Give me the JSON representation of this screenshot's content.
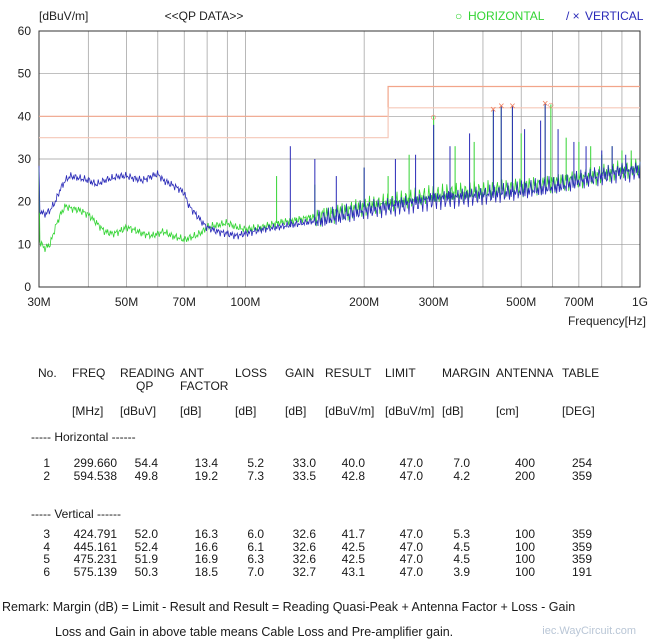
{
  "chart_data": {
    "type": "line",
    "header_unit": "[dBuV/m]",
    "title": "<<QP DATA>>",
    "xlabel": "Frequency[Hz]",
    "ylim": [
      0,
      60
    ],
    "yticks": [
      0,
      10,
      20,
      30,
      40,
      50,
      60
    ],
    "xscale": "log",
    "xlim": [
      30,
      1000
    ],
    "xticks": [
      {
        "v": 30,
        "label": "30M"
      },
      {
        "v": 50,
        "label": "50M"
      },
      {
        "v": 70,
        "label": "70M"
      },
      {
        "v": 100,
        "label": "100M"
      },
      {
        "v": 200,
        "label": "200M"
      },
      {
        "v": 300,
        "label": "300M"
      },
      {
        "v": 500,
        "label": "500M"
      },
      {
        "v": 700,
        "label": "700M"
      },
      {
        "v": 1000,
        "label": "1G"
      }
    ],
    "xgrid": [
      30,
      40,
      50,
      60,
      70,
      80,
      90,
      100,
      200,
      300,
      400,
      500,
      600,
      700,
      800,
      900,
      1000
    ],
    "legend": [
      {
        "marker": "○",
        "name": "HORIZONTAL",
        "color": "#33d433"
      },
      {
        "marker": "/ ×",
        "name": "VERTICAL",
        "color": "#2a2ab8"
      }
    ],
    "limit_lines": [
      {
        "color": "#f2a58a",
        "points": [
          [
            30,
            40
          ],
          [
            230,
            40
          ],
          [
            230,
            47
          ],
          [
            1000,
            47
          ]
        ]
      },
      {
        "color": "#f5c8b8",
        "points": [
          [
            30,
            35
          ],
          [
            230,
            35
          ],
          [
            230,
            42
          ],
          [
            1000,
            42
          ]
        ]
      }
    ],
    "series": [
      {
        "color": "#33d433",
        "points": [
          [
            30,
            11
          ],
          [
            31,
            9
          ],
          [
            32,
            10
          ],
          [
            33,
            14
          ],
          [
            34,
            17
          ],
          [
            35,
            19
          ],
          [
            36,
            18.5
          ],
          [
            38,
            18
          ],
          [
            40,
            17
          ],
          [
            42,
            15
          ],
          [
            44,
            13
          ],
          [
            46,
            12.5
          ],
          [
            48,
            13
          ],
          [
            50,
            14
          ],
          [
            52,
            13.5
          ],
          [
            55,
            12.5
          ],
          [
            58,
            12
          ],
          [
            60,
            12.5
          ],
          [
            62,
            13
          ],
          [
            65,
            12
          ],
          [
            68,
            11.5
          ],
          [
            70,
            11
          ],
          [
            72,
            11.5
          ],
          [
            75,
            12
          ],
          [
            78,
            13
          ],
          [
            80,
            14
          ],
          [
            85,
            14.5
          ],
          [
            90,
            15
          ],
          [
            95,
            14
          ],
          [
            100,
            13.5
          ],
          [
            110,
            14
          ],
          [
            120,
            15
          ],
          [
            130,
            15.5
          ],
          [
            140,
            16
          ],
          [
            150,
            16.5
          ],
          [
            160,
            17
          ],
          [
            170,
            17.5
          ],
          [
            180,
            18
          ],
          [
            190,
            18.5
          ],
          [
            200,
            19
          ],
          [
            220,
            19.5
          ],
          [
            240,
            20
          ],
          [
            260,
            20.5
          ],
          [
            280,
            21
          ],
          [
            300,
            21.5
          ],
          [
            350,
            22
          ],
          [
            400,
            22.5
          ],
          [
            450,
            23
          ],
          [
            500,
            23.5
          ],
          [
            550,
            24
          ],
          [
            600,
            24.5
          ],
          [
            650,
            25
          ],
          [
            700,
            25.5
          ],
          [
            750,
            26
          ],
          [
            800,
            26.5
          ],
          [
            850,
            27
          ],
          [
            900,
            27.5
          ],
          [
            950,
            27.5
          ],
          [
            1000,
            28
          ]
        ],
        "spikes": [
          [
            120,
            26
          ],
          [
            150,
            24
          ],
          [
            200,
            28
          ],
          [
            230,
            26
          ],
          [
            260,
            31
          ],
          [
            300,
            40
          ],
          [
            340,
            33
          ],
          [
            380,
            34
          ],
          [
            425,
            41.7
          ],
          [
            445,
            42.5
          ],
          [
            475,
            42.5
          ],
          [
            500,
            36
          ],
          [
            575,
            43.1
          ],
          [
            594.5,
            42.8
          ],
          [
            650,
            35
          ],
          [
            700,
            34
          ],
          [
            750,
            33
          ],
          [
            800,
            31
          ],
          [
            850,
            33
          ],
          [
            900,
            32
          ],
          [
            950,
            32
          ]
        ]
      },
      {
        "color": "#2a2ab8",
        "points": [
          [
            30,
            18
          ],
          [
            31,
            17
          ],
          [
            32,
            18
          ],
          [
            33,
            20
          ],
          [
            34,
            23
          ],
          [
            35,
            25
          ],
          [
            36,
            26
          ],
          [
            38,
            25.5
          ],
          [
            40,
            25
          ],
          [
            42,
            24
          ],
          [
            44,
            25
          ],
          [
            46,
            25.5
          ],
          [
            48,
            26
          ],
          [
            50,
            26
          ],
          [
            52,
            25.5
          ],
          [
            55,
            25
          ],
          [
            58,
            26
          ],
          [
            60,
            26.5
          ],
          [
            62,
            25
          ],
          [
            65,
            24
          ],
          [
            68,
            23
          ],
          [
            70,
            22
          ],
          [
            72,
            19
          ],
          [
            75,
            17
          ],
          [
            78,
            15
          ],
          [
            80,
            14
          ],
          [
            85,
            13
          ],
          [
            90,
            12.5
          ],
          [
            95,
            12
          ],
          [
            100,
            12.5
          ],
          [
            110,
            13.5
          ],
          [
            120,
            14
          ],
          [
            130,
            14.5
          ],
          [
            140,
            15
          ],
          [
            150,
            15.5
          ],
          [
            160,
            16
          ],
          [
            170,
            16.5
          ],
          [
            180,
            17
          ],
          [
            190,
            17.5
          ],
          [
            200,
            18
          ],
          [
            220,
            18.5
          ],
          [
            240,
            19
          ],
          [
            260,
            19.5
          ],
          [
            280,
            20
          ],
          [
            300,
            20.5
          ],
          [
            350,
            21
          ],
          [
            400,
            21.5
          ],
          [
            450,
            22
          ],
          [
            500,
            22.5
          ],
          [
            550,
            23
          ],
          [
            600,
            23.5
          ],
          [
            650,
            24
          ],
          [
            700,
            25
          ],
          [
            750,
            25.5
          ],
          [
            800,
            26
          ],
          [
            850,
            26.5
          ],
          [
            900,
            27
          ],
          [
            950,
            27
          ],
          [
            1000,
            27.5
          ]
        ],
        "spikes": [
          [
            130,
            33
          ],
          [
            150,
            30
          ],
          [
            170,
            26
          ],
          [
            200,
            28
          ],
          [
            240,
            30
          ],
          [
            270,
            31
          ],
          [
            300,
            38
          ],
          [
            330,
            33
          ],
          [
            370,
            36
          ],
          [
            425,
            41.7
          ],
          [
            445,
            42.5
          ],
          [
            475,
            42.5
          ],
          [
            510,
            37
          ],
          [
            560,
            39
          ],
          [
            575,
            43.1
          ],
          [
            620,
            37
          ],
          [
            680,
            34
          ],
          [
            730,
            33
          ],
          [
            800,
            32
          ],
          [
            850,
            33
          ],
          [
            920,
            31
          ]
        ]
      }
    ],
    "peak_markers": [
      {
        "x": 299.66,
        "y": 40.0,
        "symbol": "○",
        "color": "#f08060"
      },
      {
        "x": 424.791,
        "y": 41.7,
        "symbol": "×",
        "color": "#f08060"
      },
      {
        "x": 445.161,
        "y": 42.5,
        "symbol": "×",
        "color": "#f08060"
      },
      {
        "x": 475.231,
        "y": 42.5,
        "symbol": "×",
        "color": "#f08060"
      },
      {
        "x": 575.139,
        "y": 43.1,
        "symbol": "×",
        "color": "#f08060"
      },
      {
        "x": 594.538,
        "y": 42.8,
        "symbol": "○",
        "color": "#f08060"
      }
    ]
  },
  "table": {
    "headers": [
      {
        "l1": "No.",
        "l2": ""
      },
      {
        "l1": "FREQ",
        "l2": ""
      },
      {
        "l1": "READING",
        "l2": "QP"
      },
      {
        "l1": "ANT",
        "l2": "FACTOR"
      },
      {
        "l1": "LOSS",
        "l2": ""
      },
      {
        "l1": "GAIN",
        "l2": ""
      },
      {
        "l1": "RESULT",
        "l2": ""
      },
      {
        "l1": "LIMIT",
        "l2": ""
      },
      {
        "l1": "MARGIN",
        "l2": ""
      },
      {
        "l1": "ANTENNA",
        "l2": ""
      },
      {
        "l1": "TABLE",
        "l2": ""
      }
    ],
    "units": [
      "",
      "[MHz]",
      "[dBuV]",
      "[dB]",
      "[dB]",
      "[dB]",
      "[dBuV/m]",
      "[dBuV/m]",
      "[dB]",
      "[cm]",
      "[DEG]"
    ],
    "groups": [
      {
        "label": "----- Horizontal ------",
        "rows": [
          [
            "1",
            "299.660",
            "54.4",
            "13.4",
            "5.2",
            "33.0",
            "40.0",
            "47.0",
            "7.0",
            "400",
            "254"
          ],
          [
            "2",
            "594.538",
            "49.8",
            "19.2",
            "7.3",
            "33.5",
            "42.8",
            "47.0",
            "4.2",
            "200",
            "359"
          ]
        ]
      },
      {
        "label": "----- Vertical  ------",
        "rows": [
          [
            "3",
            "424.791",
            "52.0",
            "16.3",
            "6.0",
            "32.6",
            "41.7",
            "47.0",
            "5.3",
            "100",
            "359"
          ],
          [
            "4",
            "445.161",
            "52.4",
            "16.6",
            "6.1",
            "32.6",
            "42.5",
            "47.0",
            "4.5",
            "100",
            "359"
          ],
          [
            "5",
            "475.231",
            "51.9",
            "16.9",
            "6.3",
            "32.6",
            "42.5",
            "47.0",
            "4.5",
            "100",
            "359"
          ],
          [
            "6",
            "575.139",
            "50.3",
            "18.5",
            "7.0",
            "32.7",
            "43.1",
            "47.0",
            "3.9",
            "100",
            "191"
          ]
        ]
      }
    ]
  },
  "remark": {
    "line1": "Remark: Margin (dB) = Limit -   Result and Result = Reading Quasi-Peak + Antenna Factor + Loss -  Gain",
    "line2": "Loss and Gain in above table means Cable Loss and Pre-amplifier gain."
  },
  "watermark": "iec.WayCircuit.com"
}
